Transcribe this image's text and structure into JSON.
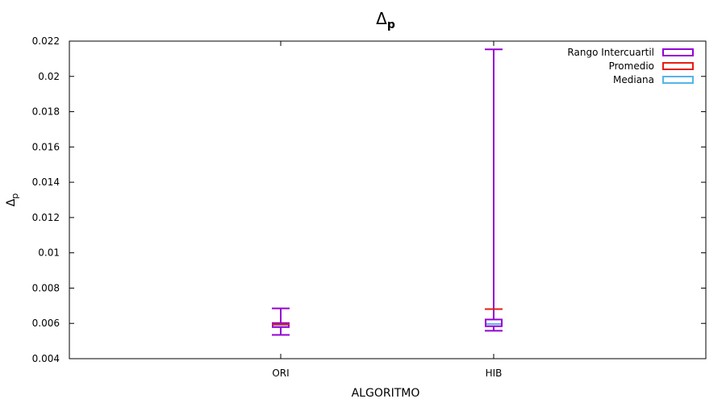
{
  "chart_data": {
    "type": "boxplot",
    "title": "Δ",
    "title_subscript": "p",
    "xlabel": "ALGORITMO",
    "ylabel": "Δ",
    "ylabel_subscript": "p",
    "ylim": [
      0.004,
      0.022
    ],
    "yticks": [
      "0.004",
      "0.006",
      "0.008",
      "0.01",
      "0.012",
      "0.014",
      "0.016",
      "0.018",
      "0.02",
      "0.022"
    ],
    "categories": [
      "ORI",
      "HIB"
    ],
    "grid": false,
    "legend_position": "top-right",
    "series": [
      {
        "name": "Rango Intercuartil",
        "color": "#9400d3",
        "role": "box-whisker"
      },
      {
        "name": "Promedio",
        "color": "#e51e10",
        "role": "mean"
      },
      {
        "name": "Mediana",
        "color": "#56b4e9",
        "role": "median"
      }
    ],
    "boxes": [
      {
        "category": "ORI",
        "min": 0.00535,
        "q1": 0.00579,
        "median": 0.00591,
        "q3": 0.00602,
        "max": 0.00685,
        "mean": 0.00595
      },
      {
        "category": "HIB",
        "min": 0.00558,
        "q1": 0.00584,
        "median": 0.00597,
        "q3": 0.00622,
        "max": 0.02153,
        "mean": 0.00681
      }
    ]
  }
}
